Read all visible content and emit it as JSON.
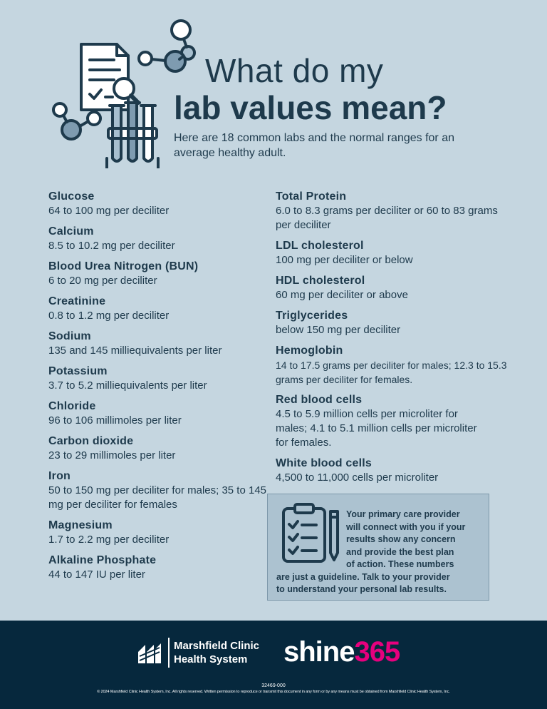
{
  "header": {
    "title_line1": "What do my",
    "title_line2": "lab values mean?",
    "subtitle": "Here are 18 common labs and the normal ranges for an average healthy adult.",
    "illustration_icon": "lab-document-molecule-test-tubes-icon"
  },
  "labs_left": [
    {
      "name": "Glucose",
      "range": "64 to 100 mg per deciliter"
    },
    {
      "name": "Calcium",
      "range": "8.5 to 10.2 mg per deciliter"
    },
    {
      "name": "Blood Urea Nitrogen (BUN)",
      "range": "6 to 20 mg per deciliter"
    },
    {
      "name": "Creatinine",
      "range": "0.8 to 1.2 mg per deciliter"
    },
    {
      "name": "Sodium",
      "range": "135 and 145 milliequivalents per liter"
    },
    {
      "name": "Potassium",
      "range": "3.7 to 5.2 milliequivalents per liter"
    },
    {
      "name": "Chloride",
      "range": "96 to 106 millimoles per liter"
    },
    {
      "name": "Carbon dioxide",
      "range": "23 to 29 millimoles per liter"
    },
    {
      "name": "Iron",
      "range": "50 to 150 mg per deciliter for males; 35 to 145 mg per deciliter for females"
    },
    {
      "name": "Magnesium",
      "range": "1.7 to 2.2 mg per deciliter"
    },
    {
      "name": "Alkaline Phosphate",
      "range": "44 to 147 IU per liter"
    }
  ],
  "labs_right": [
    {
      "name": "Total Protein",
      "range": "6.0 to 8.3 grams per deciliter or 60 to 83 grams per deciliter"
    },
    {
      "name": "LDL cholesterol",
      "range": "100 mg per deciliter or below"
    },
    {
      "name": "HDL cholesterol",
      "range": "60 mg per deciliter or above"
    },
    {
      "name": "Triglycerides",
      "range": "below 150 mg per deciliter"
    },
    {
      "name": "Hemoglobin",
      "range": "14 to 17.5 grams per deciliter for males; 12.3 to 15.3 grams per deciliter for females."
    },
    {
      "name": "Red blood cells",
      "range": "4.5 to 5.9 million cells per microliter for males; 4.1 to 5.1 million cells per microliter for females."
    },
    {
      "name": "White blood cells",
      "range": "4,500 to 11,000 cells per microliter"
    }
  ],
  "note": {
    "icon": "clipboard-checklist-pencil-icon",
    "line1": "Your primary care provider",
    "line2": "will connect with you if your",
    "line3": "results show any concern",
    "line4": "and provide the best plan",
    "line5": "of action. These numbers",
    "line6": "are just a guideline. Talk to your provider",
    "line7": "to understand your personal lab results."
  },
  "footer": {
    "org_line1": "Marshfield Clinic",
    "org_line2": "Health System",
    "shine_word": "shine",
    "shine_num": "365",
    "doc_number": "32469-000",
    "copyright": "© 2024 Marshfield Clinic Health System, Inc. All rights reserved. Written permission to reproduce or transmit this document in any form or by any means must be obtained from Marshfield Clinic Health System, Inc."
  },
  "colors": {
    "background": "#c5d6e0",
    "text": "#1e3a4c",
    "footer_bg": "#06283d",
    "accent_pink": "#e6007e",
    "note_bg": "#acc2d0"
  }
}
